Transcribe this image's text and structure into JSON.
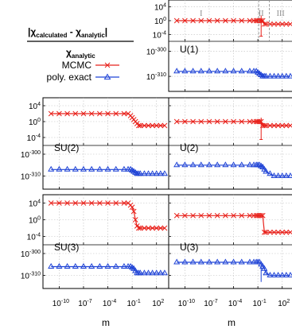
{
  "ylabel": {
    "numerator": "|χcalculated - χanalytic|",
    "num_parts": [
      "|χ",
      "calculated",
      " - χ",
      "analytic",
      "|"
    ],
    "den_parts": [
      "χ",
      "analytic"
    ]
  },
  "legend": {
    "mcmc": "MCMC",
    "poly": "poly. exact",
    "color_red": "#e8201a",
    "color_blue": "#1f43d6"
  },
  "xlabels": [
    "m",
    "m"
  ],
  "xticks": [
    "10-10",
    "10-7",
    "10-4",
    "10-1",
    "102"
  ],
  "xtick_labels": [
    {
      "base": "10",
      "exp": "-10"
    },
    {
      "base": "10",
      "exp": "-7"
    },
    {
      "base": "10",
      "exp": "-4"
    },
    {
      "base": "10",
      "exp": "-1"
    },
    {
      "base": "10",
      "exp": "2"
    }
  ],
  "yticks_mcmc": [
    {
      "base": "10",
      "exp": "4"
    },
    {
      "base": "10",
      "exp": "0"
    },
    {
      "base": "10",
      "exp": "-4"
    }
  ],
  "yticks_poly": [
    {
      "base": "10",
      "exp": "-300"
    },
    {
      "base": "10",
      "exp": "-310"
    }
  ],
  "regions": [
    "I",
    "II",
    "III"
  ],
  "panels": [
    "U(1)",
    "SU(2)",
    "U(2)",
    "SU(3)",
    "U(3)"
  ],
  "chart_data": [
    {
      "type": "line",
      "title": "U(1)",
      "xlabel": "",
      "xscale": "log",
      "x_exponent_range": [
        -12,
        3.5
      ],
      "x_exponents": [
        -11,
        -10,
        -9,
        -8,
        -7,
        -6,
        -5,
        -4,
        -3,
        -2,
        -1.5,
        -1.2,
        -1,
        -0.8,
        -0.6,
        -0.4,
        -0.2,
        0,
        0.5,
        1,
        1.5,
        2,
        2.5,
        3
      ],
      "mcmc": {
        "name": "MCMC",
        "ylim_exp": [
          -6,
          6
        ],
        "log10_values": [
          0,
          0,
          0,
          0,
          0,
          0,
          0,
          0,
          0,
          0,
          0,
          0,
          0,
          0,
          0,
          0,
          -1,
          -1,
          -1,
          -1,
          -1,
          -1,
          -1,
          -1
        ],
        "error_bar_at_exponent": -0.6,
        "error_bar_log10": [
          -4.5,
          1.5
        ]
      },
      "poly": {
        "name": "poly. exact",
        "ylim_exp": [
          -316,
          -296
        ],
        "log10_values": [
          -308,
          -308,
          -308,
          -308,
          -308,
          -308,
          -308,
          -308,
          -308,
          -308,
          -308,
          -308,
          -308.5,
          -309,
          -309.5,
          -310,
          -310,
          -310,
          -310,
          -310,
          -310,
          -310,
          -310,
          -310
        ]
      },
      "regions": [
        {
          "label": "I",
          "at_exponent": -8
        },
        {
          "label": "II",
          "at_exponent": -0.6
        },
        {
          "label": "III",
          "at_exponent": 1.8
        }
      ],
      "region_boundaries_exponent": [
        -0.9,
        0.4
      ]
    },
    {
      "type": "line",
      "title": "SU(2)",
      "xscale": "log",
      "x_exponent_range": [
        -12,
        3.5
      ],
      "x_exponents": [
        -11,
        -10,
        -9,
        -8,
        -7,
        -6,
        -5,
        -4,
        -3,
        -2,
        -1.5,
        -1.2,
        -1,
        -0.8,
        -0.6,
        -0.4,
        -0.2,
        0,
        0.5,
        1,
        1.5,
        2,
        2.5,
        3
      ],
      "mcmc": {
        "name": "MCMC",
        "ylim_exp": [
          -6,
          6
        ],
        "log10_values": [
          2,
          2,
          2,
          2,
          2,
          2,
          2,
          2,
          2,
          2,
          2,
          1.5,
          1,
          0.5,
          0,
          -0.5,
          -1,
          -1,
          -1,
          -1,
          -1,
          -1,
          -1,
          -1
        ]
      },
      "poly": {
        "name": "poly. exact",
        "ylim_exp": [
          -316,
          -296
        ],
        "log10_values": [
          -307,
          -307,
          -307,
          -307,
          -307,
          -307,
          -307,
          -307,
          -307,
          -307,
          -307,
          -307,
          -307.5,
          -308,
          -308.5,
          -309,
          -309,
          -309,
          -309,
          -309,
          -309,
          -309,
          -309,
          -309
        ]
      }
    },
    {
      "type": "line",
      "title": "U(2)",
      "xscale": "log",
      "x_exponent_range": [
        -12,
        3.5
      ],
      "x_exponents": [
        -11,
        -10,
        -9,
        -8,
        -7,
        -6,
        -5,
        -4,
        -3,
        -2,
        -1.5,
        -1.2,
        -1,
        -0.8,
        -0.6,
        -0.4,
        -0.2,
        0,
        0.5,
        1,
        1.5,
        2,
        2.5,
        3
      ],
      "mcmc": {
        "name": "MCMC",
        "ylim_exp": [
          -6,
          6
        ],
        "log10_values": [
          0,
          0,
          0,
          0,
          0,
          0,
          0,
          0,
          0,
          0,
          0,
          0,
          0,
          0,
          0,
          -1,
          -1,
          -1,
          -1,
          -1,
          -1,
          -1,
          -1,
          -1
        ],
        "error_bar_at_exponent": -0.6,
        "error_bar_log10": [
          -4.5,
          1
        ]
      },
      "poly": {
        "name": "poly. exact",
        "ylim_exp": [
          -316,
          -296
        ],
        "log10_values": [
          -305,
          -305,
          -305,
          -305,
          -305,
          -305,
          -305,
          -305,
          -305,
          -305,
          -305,
          -305,
          -305,
          -305,
          -305.5,
          -306,
          -307,
          -308,
          -309,
          -310,
          -310,
          -310,
          -310,
          -310
        ]
      }
    },
    {
      "type": "line",
      "title": "SU(3)",
      "xscale": "log",
      "x_exponent_range": [
        -12,
        3.5
      ],
      "x_exponents": [
        -11,
        -10,
        -9,
        -8,
        -7,
        -6,
        -5,
        -4,
        -3,
        -2,
        -1.5,
        -1.2,
        -1,
        -0.8,
        -0.6,
        -0.4,
        -0.2,
        0,
        0.5,
        1,
        1.5,
        2,
        2.5,
        3
      ],
      "mcmc": {
        "name": "MCMC",
        "ylim_exp": [
          -6,
          6
        ],
        "log10_values": [
          4,
          4,
          4,
          4,
          4,
          4,
          4,
          4,
          4,
          4,
          4,
          3.5,
          3,
          2,
          0,
          -1.5,
          -2,
          -2,
          -2,
          -2,
          -2,
          -2,
          -2,
          -2
        ]
      },
      "poly": {
        "name": "poly. exact",
        "ylim_exp": [
          -316,
          -296
        ],
        "log10_values": [
          -306,
          -306,
          -306,
          -306,
          -306,
          -306,
          -306,
          -306,
          -306,
          -306,
          -306,
          -306,
          -306.5,
          -307,
          -308,
          -309,
          -309,
          -309,
          -309,
          -309,
          -309,
          -309,
          -309,
          -309
        ]
      }
    },
    {
      "type": "line",
      "title": "U(3)",
      "xscale": "log",
      "x_exponent_range": [
        -12,
        3.5
      ],
      "x_exponents": [
        -11,
        -10,
        -9,
        -8,
        -7,
        -6,
        -5,
        -4,
        -3,
        -2,
        -1.5,
        -1.2,
        -1,
        -0.8,
        -0.6,
        -0.4,
        -0.2,
        0,
        0.5,
        1,
        1.5,
        2,
        2.5,
        3
      ],
      "mcmc": {
        "name": "MCMC",
        "ylim_exp": [
          -6,
          6
        ],
        "log10_values": [
          1,
          1,
          1,
          1,
          1,
          1,
          1,
          1,
          1,
          1,
          1,
          1,
          1,
          1,
          1,
          1,
          -3,
          -3,
          -3,
          -3,
          -3,
          -3,
          -3,
          -3
        ]
      },
      "poly": {
        "name": "poly. exact",
        "ylim_exp": [
          -316,
          -296
        ],
        "log10_values": [
          -304,
          -304,
          -304,
          -304,
          -304,
          -304,
          -304,
          -304,
          -304,
          -304,
          -304,
          -304,
          -304,
          -304,
          -305,
          -306,
          -307,
          -309,
          -310,
          -310,
          -310,
          -310,
          -310,
          -310
        ],
        "error_bar_at_exponent": -0.6,
        "error_bar_log10": [
          -313,
          -306
        ]
      }
    }
  ]
}
